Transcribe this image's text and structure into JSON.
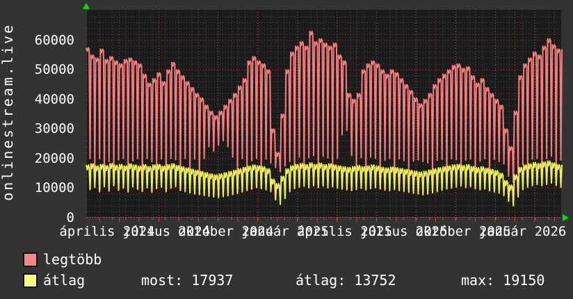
{
  "window": {
    "vertical_title": "onlinestream.live"
  },
  "colors": {
    "page_bg": "#333333",
    "plot_bg": "#1b1b1b",
    "grid_minor": "#4e4e4e",
    "grid_major": "#9a4343",
    "grid_baseline": "#cc4343",
    "series_max": "#f47d7d",
    "series_avg": "#eded55",
    "legend_max_swatch": "#fa8585",
    "legend_avg_swatch": "#fafa7d",
    "axis_arrow": "#00e000",
    "text": "#ffffff"
  },
  "legend": {
    "items": [
      {
        "label": "legtöbb",
        "color": "#fa8585"
      },
      {
        "label": "átlag",
        "color": "#fafa7d"
      }
    ]
  },
  "stats": {
    "most": "most: 17937",
    "atlag": "átlag: 13752",
    "max": "max: 19150"
  },
  "chart_data": {
    "type": "line",
    "title": "onlinestream.live",
    "xlabel": "",
    "ylabel": "",
    "ylim": [
      0,
      70588
    ],
    "y_ticks": [
      0,
      10000,
      20000,
      30000,
      40000,
      50000,
      60000
    ],
    "x_tick_labels": [
      "április 2024",
      "július 2024",
      "október 2024",
      "január 2025",
      "április 2025",
      "július 2025",
      "október 2025",
      "január 2026"
    ],
    "grid": true,
    "legend_position": "bottom-left",
    "weeks_per_series": 100,
    "series": [
      {
        "name": "legtöbb",
        "color": "#f47d7d",
        "weekly_top": [
          57500,
          55000,
          54000,
          57000,
          53500,
          54500,
          53000,
          52000,
          53500,
          54000,
          53000,
          52000,
          48500,
          45500,
          47000,
          49000,
          46000,
          50000,
          52500,
          50000,
          48000,
          46000,
          44000,
          42000,
          40500,
          38000,
          36000,
          34500,
          36000,
          38000,
          40000,
          42000,
          44500,
          47000,
          53000,
          54500,
          53000,
          52000,
          50000,
          30000,
          22000,
          35000,
          50000,
          56000,
          58000,
          59500,
          58000,
          63000,
          59500,
          60500,
          59000,
          58000,
          59000,
          55000,
          53000,
          42000,
          40000,
          42000,
          50000,
          52000,
          53000,
          52000,
          50000,
          48500,
          50000,
          49000,
          47000,
          45000,
          43000,
          40500,
          38500,
          40000,
          42000,
          45000,
          47000,
          48500,
          50000,
          51500,
          52000,
          50500,
          51000,
          48000,
          45500,
          47000,
          44000,
          42000,
          40000,
          38000,
          30000,
          24000,
          36000,
          48000,
          52000,
          54000,
          56000,
          55000,
          58000,
          60500,
          58500,
          57000
        ],
        "weekly_dip": [
          20000,
          16500,
          20000,
          14500,
          19000,
          17000,
          19500,
          20000,
          15500,
          19200,
          20000,
          15000,
          20000,
          19000,
          16500,
          19800,
          14000,
          20000,
          19600,
          15500,
          20000,
          16000,
          19800,
          14500,
          20000,
          24000,
          22500,
          24500,
          26000,
          24000,
          20500,
          15500,
          20000,
          16000,
          19300,
          20000,
          15000,
          19800,
          18500,
          17000,
          15500,
          17500,
          19000,
          16500,
          20500,
          17000,
          20300,
          21000,
          16000,
          20800,
          20200,
          17000,
          20100,
          28000,
          29500,
          21000,
          16500,
          20300,
          15500,
          20500,
          20100,
          15500,
          19400,
          20000,
          14500,
          19900,
          19300,
          16000,
          19100,
          19500,
          19000,
          18500,
          15000,
          19400,
          19700,
          14500,
          19900,
          19600,
          16500,
          19400,
          19800,
          15500,
          19100,
          19900,
          14500,
          19700,
          19000,
          18200,
          14000,
          12000,
          15000,
          18000,
          16000,
          19800,
          20000,
          15500,
          20000,
          20800,
          16000,
          19500
        ]
      },
      {
        "name": "átlag",
        "color": "#eded55",
        "weekly_top": [
          17800,
          18200,
          17500,
          18000,
          17600,
          18300,
          17700,
          18000,
          17500,
          18200,
          17800,
          17400,
          17900,
          17300,
          17800,
          18000,
          17400,
          17900,
          18200,
          17600,
          17200,
          16800,
          16400,
          16000,
          15600,
          15200,
          14800,
          14500,
          14800,
          15200,
          15600,
          16000,
          16500,
          17000,
          17400,
          17800,
          17500,
          17200,
          16500,
          13000,
          11500,
          14000,
          16500,
          17500,
          18000,
          18300,
          17900,
          18500,
          18000,
          18400,
          17900,
          18200,
          17800,
          17500,
          17200,
          17000,
          17300,
          17600,
          17200,
          17500,
          17800,
          17400,
          17000,
          16800,
          17100,
          16900,
          16600,
          16300,
          16000,
          15700,
          15400,
          15700,
          16100,
          16500,
          16900,
          17200,
          17500,
          17800,
          18000,
          17600,
          17900,
          17300,
          16900,
          17200,
          16700,
          16300,
          15900,
          15000,
          12500,
          11000,
          14500,
          17000,
          17800,
          18200,
          18600,
          18300,
          18800,
          19150,
          18500,
          17937
        ],
        "weekly_dip": [
          9500,
          10200,
          8800,
          10500,
          9000,
          10800,
          9300,
          10000,
          8700,
          10400,
          9600,
          8900,
          10100,
          8600,
          9800,
          10300,
          8800,
          10000,
          10500,
          9200,
          8800,
          8400,
          8000,
          7800,
          7500,
          7200,
          7000,
          6800,
          7100,
          7400,
          7800,
          8200,
          8700,
          9200,
          9700,
          10200,
          9800,
          9400,
          8800,
          6000,
          4500,
          6500,
          8800,
          9800,
          10300,
          10600,
          10100,
          10800,
          10200,
          10700,
          10100,
          10500,
          10000,
          9700,
          9400,
          9200,
          9500,
          9900,
          9400,
          9800,
          10100,
          9700,
          9300,
          9100,
          9500,
          9200,
          8900,
          8600,
          8300,
          8000,
          7700,
          8000,
          8400,
          8800,
          9300,
          9700,
          10000,
          10400,
          10700,
          10200,
          10500,
          9800,
          9400,
          9700,
          9100,
          8700,
          8300,
          7400,
          5500,
          4000,
          7000,
          9500,
          10300,
          10800,
          11200,
          10800,
          11300,
          11700,
          10900,
          10300
        ]
      }
    ],
    "stats_row": {
      "most": 17937,
      "atlag": 13752,
      "max": 19150
    }
  }
}
